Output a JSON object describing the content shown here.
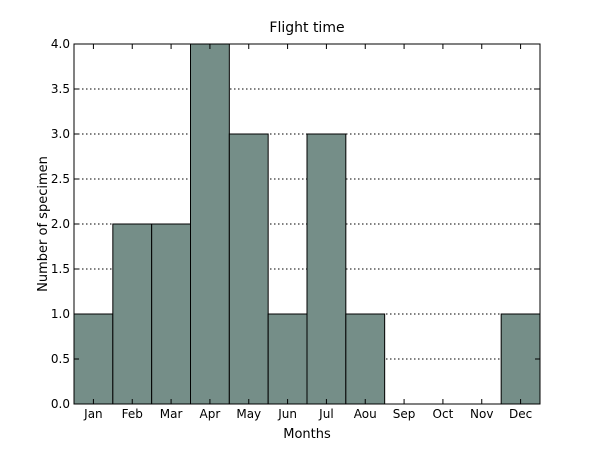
{
  "chart_data": {
    "type": "bar",
    "title": "Flight time",
    "xlabel": "Months",
    "ylabel": "Number of specimen",
    "categories": [
      "Jan",
      "Feb",
      "Mar",
      "Apr",
      "May",
      "Jun",
      "Jul",
      "Aou",
      "Sep",
      "Oct",
      "Nov",
      "Dec"
    ],
    "values": [
      1,
      2,
      2,
      4,
      3,
      1,
      3,
      1,
      0,
      0,
      0,
      1
    ],
    "ylim": [
      0,
      4
    ],
    "yticks": [
      "0.0",
      "0.5",
      "1.0",
      "1.5",
      "2.0",
      "2.5",
      "3.0",
      "3.5",
      "4.0"
    ],
    "grid": "horizontal dotted",
    "legend": "none",
    "bar_color": "#758e88"
  }
}
